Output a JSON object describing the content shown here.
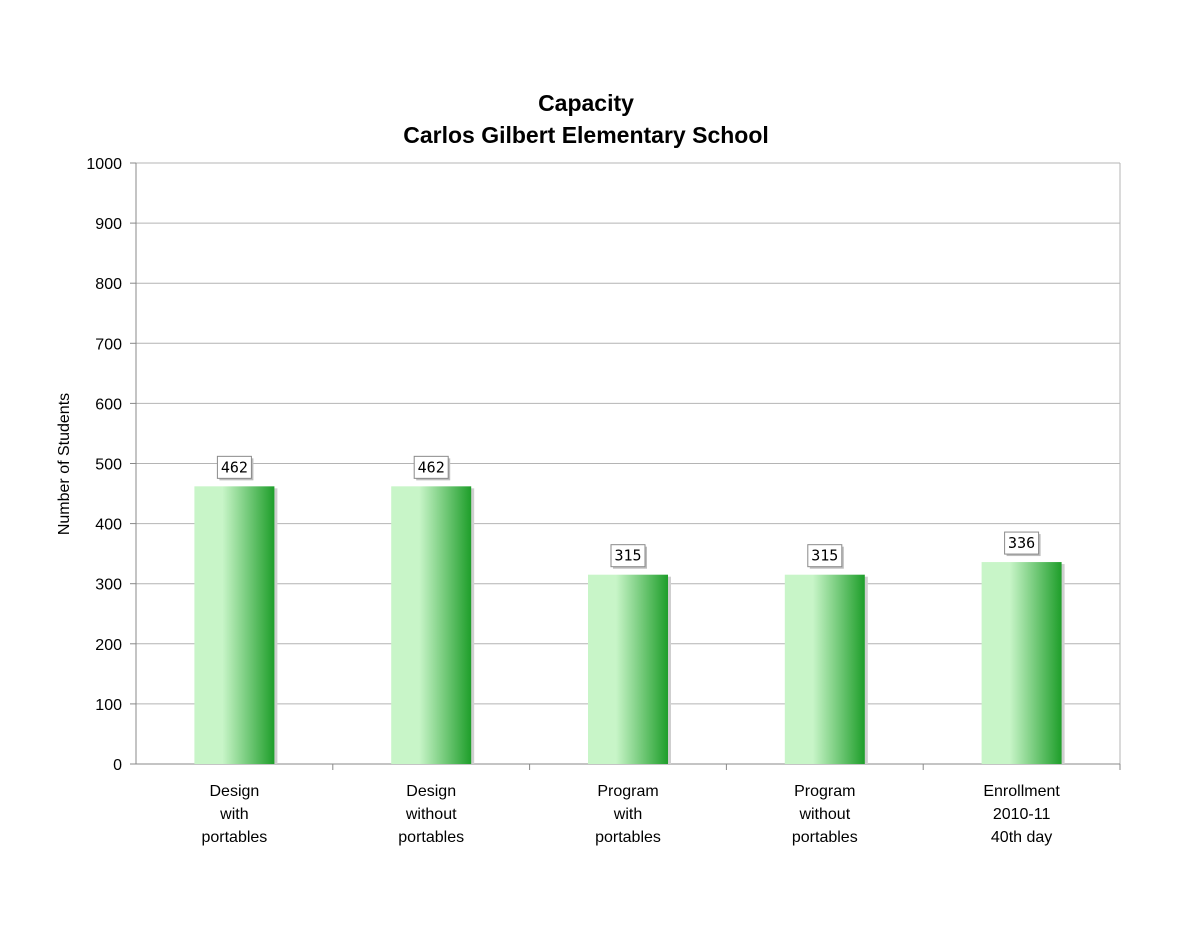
{
  "chart_data": {
    "type": "bar",
    "title": [
      "Capacity",
      "Carlos Gilbert Elementary School"
    ],
    "ylabel": "Number of Students",
    "xlabel": "",
    "categories": [
      [
        "Design",
        "with",
        "portables"
      ],
      [
        "Design",
        "without",
        "portables"
      ],
      [
        "Program",
        "with",
        "portables"
      ],
      [
        "Program",
        "without",
        "portables"
      ],
      [
        "Enrollment",
        "2010-11",
        "40th day"
      ]
    ],
    "values": [
      462,
      462,
      315,
      315,
      336
    ],
    "ylim": [
      0,
      1000
    ],
    "yticks": [
      0,
      100,
      200,
      300,
      400,
      500,
      600,
      700,
      800,
      900,
      1000
    ],
    "grid": true,
    "data_labels": true,
    "legend": "none",
    "colors": {
      "bar_light": "#c8f5c8",
      "bar_dark": "#1e9e2a",
      "gridline": "#b4b4b4",
      "axis": "#888888",
      "shadow": "#cfcfcf"
    }
  }
}
